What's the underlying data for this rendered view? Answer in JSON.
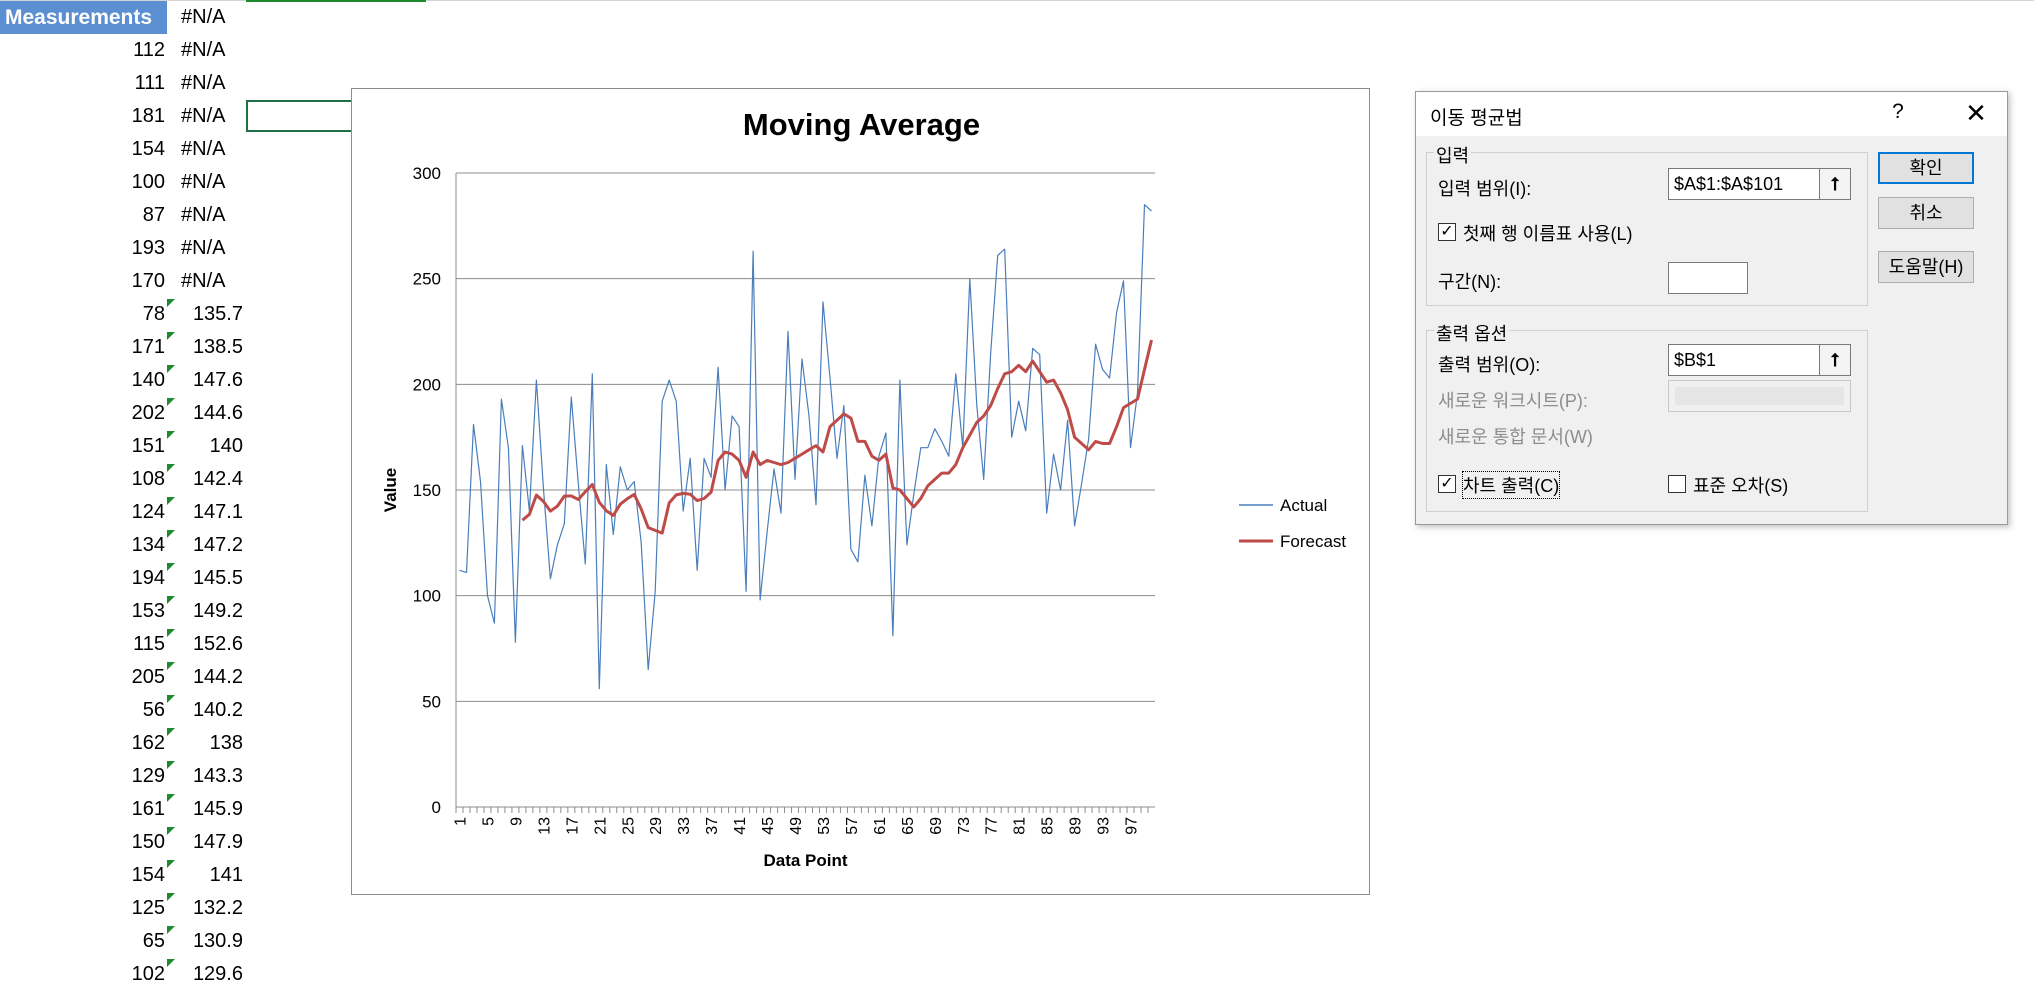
{
  "sheet": {
    "header_label": "Measurements",
    "header_b": "#N/A",
    "rows": [
      {
        "a": "112",
        "b": "#N/A",
        "na": true
      },
      {
        "a": "111",
        "b": "#N/A",
        "na": true
      },
      {
        "a": "181",
        "b": "#N/A",
        "na": true
      },
      {
        "a": "154",
        "b": "#N/A",
        "na": true
      },
      {
        "a": "100",
        "b": "#N/A",
        "na": true
      },
      {
        "a": "87",
        "b": "#N/A",
        "na": true
      },
      {
        "a": "193",
        "b": "#N/A",
        "na": true
      },
      {
        "a": "170",
        "b": "#N/A",
        "na": true
      },
      {
        "a": "78",
        "b": "135.7",
        "na": false
      },
      {
        "a": "171",
        "b": "138.5",
        "na": false
      },
      {
        "a": "140",
        "b": "147.6",
        "na": false
      },
      {
        "a": "202",
        "b": "144.6",
        "na": false
      },
      {
        "a": "151",
        "b": "140",
        "na": false
      },
      {
        "a": "108",
        "b": "142.4",
        "na": false
      },
      {
        "a": "124",
        "b": "147.1",
        "na": false
      },
      {
        "a": "134",
        "b": "147.2",
        "na": false
      },
      {
        "a": "194",
        "b": "145.5",
        "na": false
      },
      {
        "a": "153",
        "b": "149.2",
        "na": false
      },
      {
        "a": "115",
        "b": "152.6",
        "na": false
      },
      {
        "a": "205",
        "b": "144.2",
        "na": false
      },
      {
        "a": "56",
        "b": "140.2",
        "na": false
      },
      {
        "a": "162",
        "b": "138",
        "na": false
      },
      {
        "a": "129",
        "b": "143.3",
        "na": false
      },
      {
        "a": "161",
        "b": "145.9",
        "na": false
      },
      {
        "a": "150",
        "b": "147.9",
        "na": false
      },
      {
        "a": "154",
        "b": "141",
        "na": false
      },
      {
        "a": "125",
        "b": "132.2",
        "na": false
      },
      {
        "a": "65",
        "b": "130.9",
        "na": false
      },
      {
        "a": "102",
        "b": "129.6",
        "na": false
      }
    ],
    "colors": {
      "header_bg": "#5b8fd1",
      "indicator": "#1e8a2e"
    }
  },
  "chart_data": {
    "type": "line",
    "title": "Moving Average",
    "xlabel": "Data Point",
    "ylabel": "Value",
    "ylim": [
      0,
      300
    ],
    "yticks": [
      0,
      50,
      100,
      150,
      200,
      250,
      300
    ],
    "xlim": [
      1,
      100
    ],
    "xticks": [
      1,
      5,
      9,
      13,
      17,
      21,
      25,
      29,
      33,
      37,
      41,
      45,
      49,
      53,
      57,
      61,
      65,
      69,
      73,
      77,
      81,
      85,
      89,
      93,
      97
    ],
    "grid": true,
    "legend": "right",
    "series": [
      {
        "name": "Actual",
        "color": "#4a7ebb",
        "values": [
          112,
          111,
          181,
          154,
          100,
          87,
          193,
          170,
          78,
          171,
          140,
          202,
          151,
          108,
          124,
          134,
          194,
          153,
          115,
          205,
          56,
          162,
          129,
          161,
          150,
          154,
          125,
          65,
          102,
          192,
          202,
          192,
          140,
          165,
          112,
          165,
          156,
          208,
          150,
          185,
          180,
          102,
          263,
          98,
          130,
          160,
          139,
          225,
          155,
          212,
          185,
          143,
          239,
          203,
          165,
          190,
          122,
          116,
          157,
          133,
          166,
          177,
          81,
          202,
          124,
          148,
          170,
          170,
          179,
          173,
          166,
          205,
          170,
          250,
          190,
          155,
          215,
          261,
          264,
          175,
          192,
          178,
          217,
          214,
          139,
          167,
          150,
          183,
          133,
          153,
          174,
          219,
          207,
          203,
          234,
          249,
          170,
          196,
          285,
          282
        ],
        "x_start": 1
      },
      {
        "name": "Forecast",
        "color": "#be4b48",
        "values": [
          135.7,
          138.5,
          147.6,
          144.6,
          140,
          142.4,
          147.1,
          147.2,
          145.5,
          149.2,
          152.6,
          144.2,
          140.2,
          138,
          143.3,
          145.9,
          147.9,
          141,
          132.2,
          130.9,
          129.6,
          143.9,
          147.7,
          148.4,
          148,
          145,
          146,
          149,
          164,
          168,
          167,
          164,
          156,
          168,
          162,
          164,
          163,
          162,
          163,
          165,
          167,
          169,
          171,
          168,
          180,
          183,
          186,
          184,
          173,
          173,
          166,
          164,
          167,
          151,
          150,
          146,
          142,
          146,
          152,
          155,
          158,
          158,
          162,
          170,
          176,
          182,
          185,
          190,
          198,
          205,
          206,
          209,
          206,
          211,
          206,
          201,
          202,
          196,
          188,
          175,
          172,
          169,
          173,
          172,
          172,
          180,
          189,
          191,
          193,
          207,
          221
        ],
        "x_start": 10
      }
    ]
  },
  "dialog": {
    "title": "이동 평균법",
    "help": "?",
    "close": "✕",
    "input_group": "입력",
    "input_range_label": "입력 범위(I):",
    "input_range_value": "$A$1:$A$101",
    "first_row_label": "첫째 행 이름표 사용(L)",
    "first_row_checked": "✓",
    "interval_label": "구간(N):",
    "interval_value": "",
    "output_group": "출력 옵션",
    "output_range_label": "출력 범위(O):",
    "output_range_value": "$B$1",
    "new_sheet_label": "새로운 워크시트(P):",
    "new_workbook_label": "새로운 통합 문서(W)",
    "chart_output_label": "차트 출력(C)",
    "chart_output_checked": "✓",
    "std_error_label": "표준 오차(S)",
    "std_error_checked": "",
    "ok_label": "확인",
    "cancel_label": "취소",
    "help_button_label": "도움말(H)",
    "ref_icon": "⭡"
  }
}
